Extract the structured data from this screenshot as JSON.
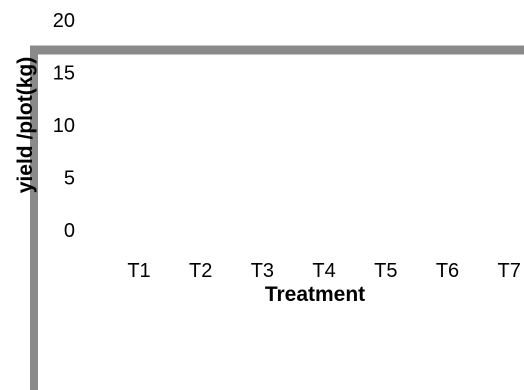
{
  "chart_data": {
    "type": "bar",
    "title": "",
    "xlabel": "Treatment",
    "ylabel": "yield /plot(kg)",
    "categories": [
      "T1",
      "T2",
      "T3",
      "T4",
      "T5",
      "T6",
      "T7"
    ],
    "ylim": [
      0,
      20
    ],
    "yticks": [
      0,
      5,
      10,
      15,
      20
    ],
    "grid": false,
    "legend": "none",
    "series": [
      {
        "values": [
          null,
          null,
          null,
          null,
          null,
          null,
          null
        ]
      }
    ],
    "colors": {
      "frame": "#8a8a8a",
      "text": "#000000"
    }
  }
}
